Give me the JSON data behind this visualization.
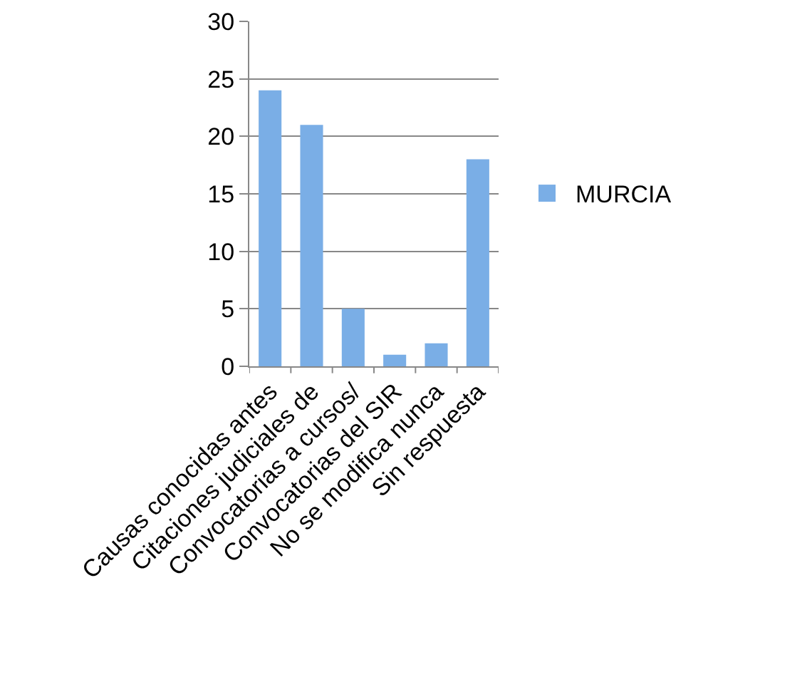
{
  "chart_data": {
    "type": "bar",
    "categories": [
      "Causas conocidas antes",
      "Citaciones judiciales de",
      "Convocatorias a cursos/",
      "Convocatorias del SIR",
      "No se modifica nunca",
      "Sin respuesta"
    ],
    "series": [
      {
        "name": "MURCIA",
        "color": "#7aaee6",
        "values": [
          24,
          21,
          5,
          1,
          2,
          18
        ]
      }
    ],
    "ylim": [
      0,
      30
    ],
    "yticks": [
      0,
      5,
      10,
      15,
      20,
      25,
      30
    ],
    "grid": "y",
    "legend": "right"
  }
}
